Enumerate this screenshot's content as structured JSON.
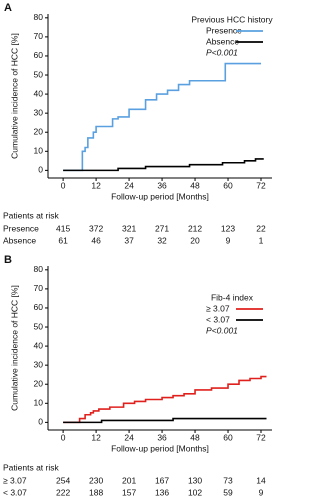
{
  "chart_data": [
    {
      "type": "line",
      "step": true,
      "panel_label": "A",
      "ylabel": "Cumulative incidence of HCC [%]",
      "xlabel": "Follow-up period [Months]",
      "xlim": [
        -5.5,
        76
      ],
      "ylim": [
        -4,
        82
      ],
      "xticks": [
        0,
        12,
        24,
        36,
        48,
        60,
        72
      ],
      "yticks": [
        0,
        10,
        20,
        30,
        40,
        50,
        60,
        70,
        80
      ],
      "legend_title": "Previous HCC history",
      "annotation": "P<0.001",
      "series": [
        {
          "name": "Presence",
          "color": "#5aa0e0",
          "x": [
            0,
            5,
            7,
            8,
            9,
            11,
            12,
            18,
            20,
            24,
            30,
            34,
            38,
            42,
            46,
            58,
            59,
            72
          ],
          "values": [
            0,
            0,
            10,
            12,
            17,
            20,
            23,
            27,
            28,
            32,
            37,
            40,
            42,
            45,
            47,
            47,
            56,
            56
          ]
        },
        {
          "name": "Absence",
          "color": "#000000",
          "x": [
            0,
            20,
            30,
            46,
            58,
            66,
            70,
            73
          ],
          "values": [
            0,
            1,
            2,
            3,
            4,
            5,
            6,
            6
          ]
        }
      ],
      "risk_table": {
        "title": "Patients at risk",
        "rows": [
          {
            "label": "Presence",
            "values": [
              415,
              372,
              321,
              271,
              212,
              123,
              22
            ]
          },
          {
            "label": "Absence",
            "values": [
              61,
              46,
              37,
              32,
              20,
              9,
              1
            ]
          }
        ]
      }
    },
    {
      "type": "line",
      "step": true,
      "panel_label": "B",
      "ylabel": "Cumulative incidence of HCC [%]",
      "xlabel": "Follow-up period [Months]",
      "xlim": [
        -5.5,
        76
      ],
      "ylim": [
        -4,
        82
      ],
      "xticks": [
        0,
        12,
        24,
        36,
        48,
        60,
        72
      ],
      "yticks": [
        0,
        10,
        20,
        30,
        40,
        50,
        60,
        70,
        80
      ],
      "legend_title": "Fib-4 index",
      "annotation": "P<0.001",
      "series": [
        {
          "name": "≥ 3.07",
          "color": "#e0201c",
          "x": [
            0,
            5,
            6,
            8,
            10,
            11,
            13,
            17,
            22,
            26,
            30,
            36,
            40,
            44,
            48,
            54,
            60,
            64,
            68,
            72,
            74
          ],
          "values": [
            0,
            0,
            2,
            4,
            5,
            6,
            7,
            8,
            10,
            11,
            12,
            13,
            14,
            15,
            17,
            18,
            20,
            22,
            23,
            24,
            24
          ]
        },
        {
          "name": "< 3.07",
          "color": "#000000",
          "x": [
            0,
            14,
            40,
            74
          ],
          "values": [
            0,
            1,
            2,
            2
          ]
        }
      ],
      "risk_table": {
        "title": "Patients at risk",
        "rows": [
          {
            "label": "≥ 3.07",
            "values": [
              254,
              230,
              201,
              167,
              130,
              73,
              14
            ]
          },
          {
            "label": "< 3.07",
            "values": [
              222,
              188,
              157,
              136,
              102,
              59,
              9
            ]
          }
        ]
      }
    }
  ]
}
